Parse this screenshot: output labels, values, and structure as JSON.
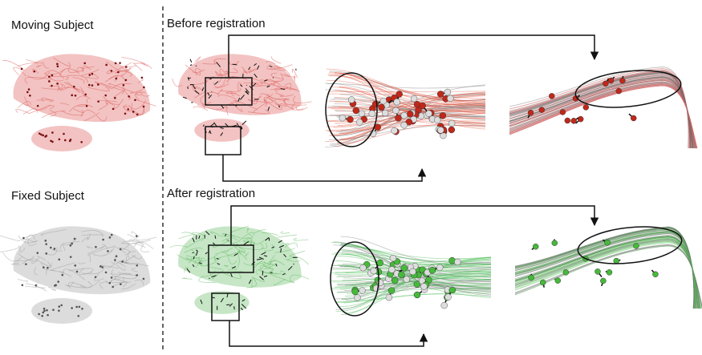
{
  "labels": {
    "moving": "Moving Subject",
    "fixed": "Fixed Subject",
    "before": "Before registration",
    "after": "After registration"
  }
}
